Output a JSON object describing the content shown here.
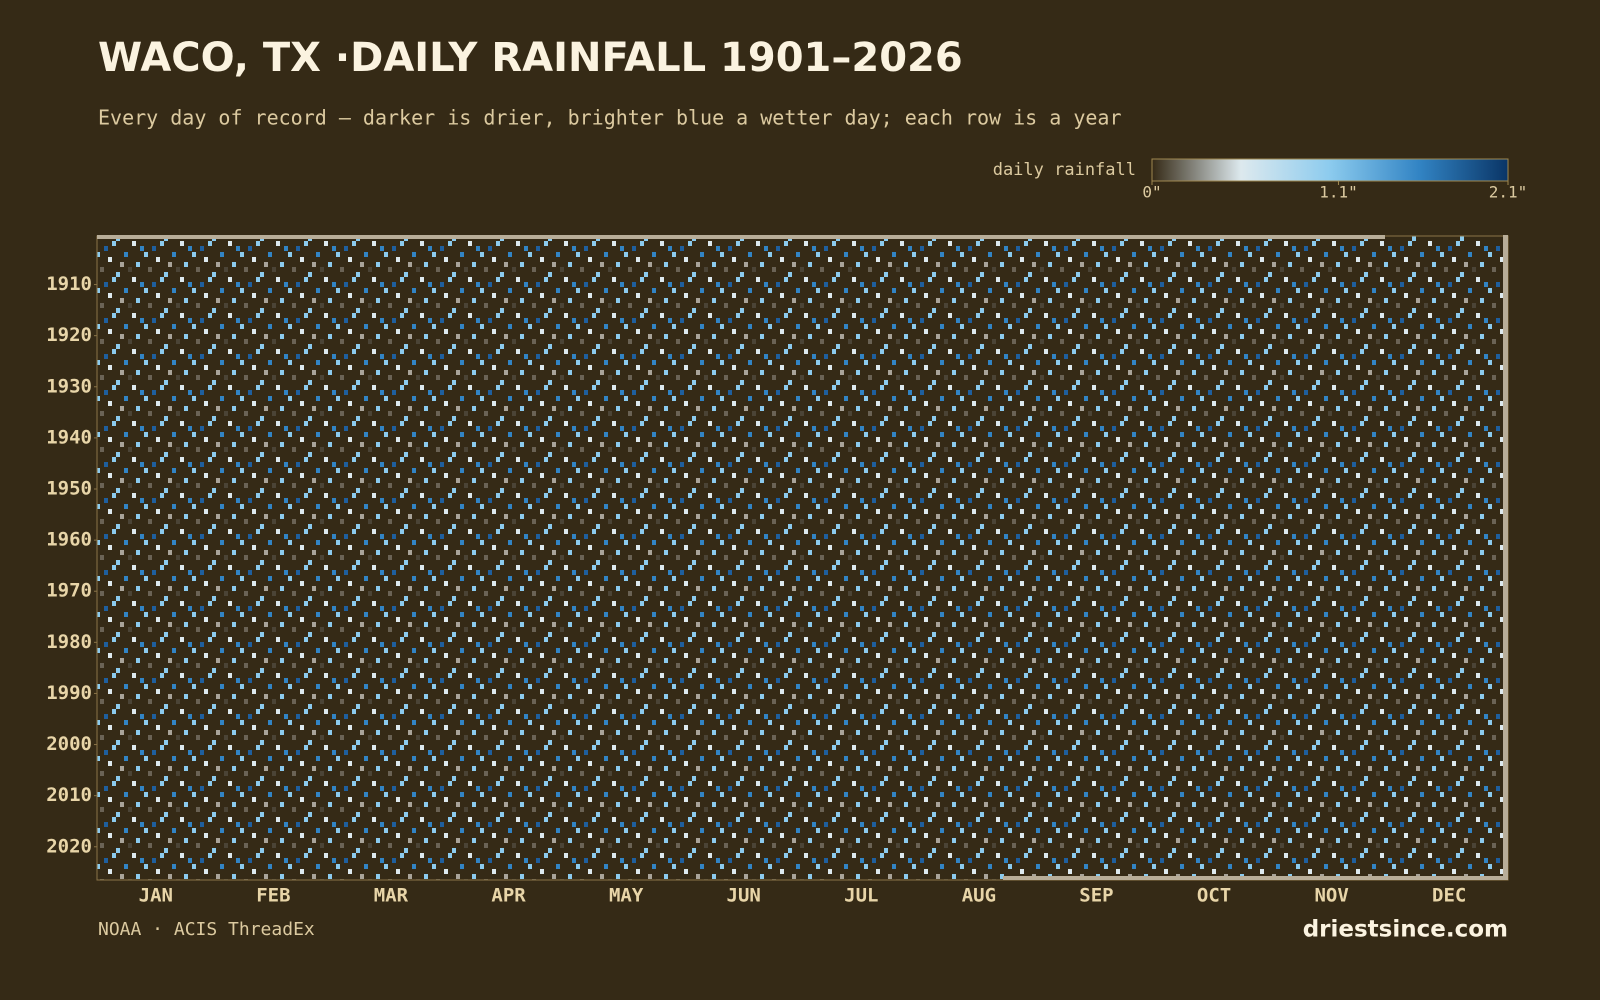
{
  "chart_data": {
    "type": "heatmap",
    "title": "WACO, TX ·DAILY RAINFALL 1901–2026",
    "subtitle": "Every day of record — darker is drier, brighter blue a wetter day; each row is a year",
    "colorbar_label": "daily rainfall",
    "zlim": [
      0,
      2.1
    ],
    "zticks": [
      {
        "value": 0,
        "label": "0\""
      },
      {
        "value": 1.1,
        "label": "1.1\""
      },
      {
        "value": 2.1,
        "label": "2.1\""
      }
    ],
    "colorscale": [
      "#352a16",
      "#dde9ee",
      "#8ccbee",
      "#3284c4",
      "#0a3566"
    ],
    "categories": [
      "JAN",
      "FEB",
      "MAR",
      "APR",
      "MAY",
      "JUN",
      "JUL",
      "AUG",
      "SEP",
      "OCT",
      "NOV",
      "DEC"
    ],
    "ylim": [
      1900.5,
      2026.5
    ],
    "yticks": [
      1910,
      1920,
      1930,
      1940,
      1950,
      1960,
      1970,
      1980,
      1990,
      2000,
      2010,
      2020
    ],
    "source": "NOAA · ACIS ThreadEx",
    "brand": "driestsince.com"
  }
}
